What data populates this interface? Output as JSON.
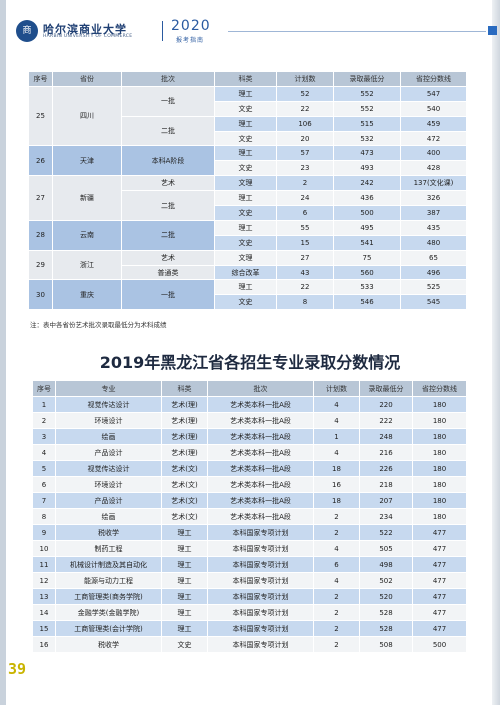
{
  "header": {
    "logo_cn": "哈尔滨商业大学",
    "logo_en": "HARBIN UNIVERSITY OF COMMERCE",
    "year": "2020",
    "guide": "报考指南",
    "seal_text": "商"
  },
  "table1": {
    "headers": [
      "序号",
      "省份",
      "批次",
      "科类",
      "计划数",
      "录取最低分",
      "省控分数线"
    ],
    "rows": [
      {
        "seq": "25",
        "province": "四川",
        "batch": "一批",
        "type": "理工",
        "plan": "52",
        "min": "552",
        "line": "547"
      },
      {
        "type": "文史",
        "plan": "22",
        "min": "552",
        "line": "540"
      },
      {
        "batch": "二批",
        "type": "理工",
        "plan": "106",
        "min": "515",
        "line": "459"
      },
      {
        "type": "文史",
        "plan": "20",
        "min": "532",
        "line": "472"
      },
      {
        "seq": "26",
        "province": "天津",
        "batch": "本科A阶段",
        "type": "理工",
        "plan": "57",
        "min": "473",
        "line": "400"
      },
      {
        "type": "文史",
        "plan": "23",
        "min": "493",
        "line": "428"
      },
      {
        "seq": "27",
        "province": "新疆",
        "batch": "艺术",
        "type": "文理",
        "plan": "2",
        "min": "242",
        "line": "137(文化课)"
      },
      {
        "batch": "二批",
        "type": "理工",
        "plan": "24",
        "min": "436",
        "line": "326"
      },
      {
        "type": "文史",
        "plan": "6",
        "min": "500",
        "line": "387"
      },
      {
        "seq": "28",
        "province": "云南",
        "batch": "二批",
        "type": "理工",
        "plan": "55",
        "min": "495",
        "line": "435"
      },
      {
        "type": "文史",
        "plan": "15",
        "min": "541",
        "line": "480"
      },
      {
        "seq": "29",
        "province": "浙江",
        "batch": "艺术",
        "type": "文理",
        "plan": "27",
        "min": "75",
        "line": "65"
      },
      {
        "batch": "普通类",
        "type": "综合改革",
        "plan": "43",
        "min": "560",
        "line": "496"
      },
      {
        "seq": "30",
        "province": "重庆",
        "batch": "一批",
        "type": "理工",
        "plan": "22",
        "min": "533",
        "line": "525"
      },
      {
        "type": "文史",
        "plan": "8",
        "min": "546",
        "line": "545"
      }
    ]
  },
  "note": "注：表中各省份艺术批次录取最低分为术科成绩",
  "title2": "2019年黑龙江省各招生专业录取分数情况",
  "table2": {
    "headers": [
      "序号",
      "专业",
      "科类",
      "批次",
      "计划数",
      "录取最低分",
      "省控分数线"
    ],
    "rows": [
      [
        "1",
        "视觉传达设计",
        "艺术(理)",
        "艺术类本科一批A段",
        "4",
        "220",
        "180"
      ],
      [
        "2",
        "环境设计",
        "艺术(理)",
        "艺术类本科一批A段",
        "4",
        "222",
        "180"
      ],
      [
        "3",
        "绘画",
        "艺术(理)",
        "艺术类本科一批A段",
        "1",
        "248",
        "180"
      ],
      [
        "4",
        "产品设计",
        "艺术(理)",
        "艺术类本科一批A段",
        "4",
        "216",
        "180"
      ],
      [
        "5",
        "视觉传达设计",
        "艺术(文)",
        "艺术类本科一批A段",
        "18",
        "226",
        "180"
      ],
      [
        "6",
        "环境设计",
        "艺术(文)",
        "艺术类本科一批A段",
        "16",
        "218",
        "180"
      ],
      [
        "7",
        "产品设计",
        "艺术(文)",
        "艺术类本科一批A段",
        "18",
        "207",
        "180"
      ],
      [
        "8",
        "绘画",
        "艺术(文)",
        "艺术类本科一批A段",
        "2",
        "234",
        "180"
      ],
      [
        "9",
        "税收学",
        "理工",
        "本科国家专项计划",
        "2",
        "522",
        "477"
      ],
      [
        "10",
        "制药工程",
        "理工",
        "本科国家专项计划",
        "4",
        "505",
        "477"
      ],
      [
        "11",
        "机械设计制造及其自动化",
        "理工",
        "本科国家专项计划",
        "6",
        "498",
        "477"
      ],
      [
        "12",
        "能源与动力工程",
        "理工",
        "本科国家专项计划",
        "4",
        "502",
        "477"
      ],
      [
        "13",
        "工商管理类(商务学院)",
        "理工",
        "本科国家专项计划",
        "2",
        "520",
        "477"
      ],
      [
        "14",
        "金融学类(金融学院)",
        "理工",
        "本科国家专项计划",
        "2",
        "528",
        "477"
      ],
      [
        "15",
        "工商管理类(会计学院)",
        "理工",
        "本科国家专项计划",
        "2",
        "528",
        "477"
      ],
      [
        "16",
        "税收学",
        "文史",
        "本科国家专项计划",
        "2",
        "508",
        "500"
      ]
    ]
  },
  "page_number": "39"
}
